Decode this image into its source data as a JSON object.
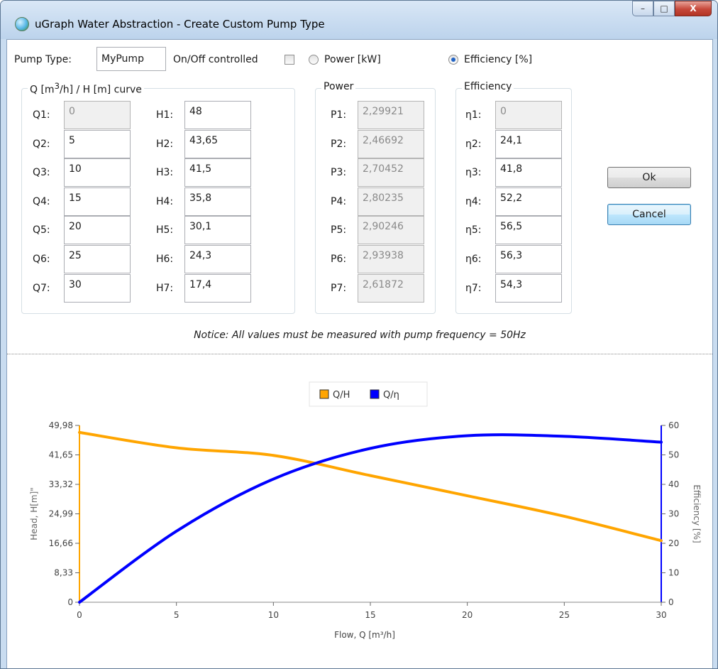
{
  "window": {
    "title": "uGraph Water Abstraction - Create Custom Pump Type",
    "buttons": {
      "minimize": "–",
      "maximize": "□",
      "close": "X"
    }
  },
  "form": {
    "pump_type_label": "Pump Type:",
    "pump_type_value": "MyPump",
    "onoff_label": "On/Off controlled",
    "onoff_checked": false,
    "power_radio_label": "Power [kW]",
    "efficiency_radio_label": "Efficiency [%]",
    "selected_mode": "efficiency"
  },
  "groups": {
    "qh": {
      "title": "Q [m³/h] / H [m] curve",
      "q_labels": [
        "Q1:",
        "Q2:",
        "Q3:",
        "Q4:",
        "Q5:",
        "Q6:",
        "Q7:"
      ],
      "q_values": [
        "0",
        "5",
        "10",
        "15",
        "20",
        "25",
        "30"
      ],
      "h_labels": [
        "H1:",
        "H2:",
        "H3:",
        "H4:",
        "H5:",
        "H6:",
        "H7:"
      ],
      "h_values": [
        "48",
        "43,65",
        "41,5",
        "35,8",
        "30,1",
        "24,3",
        "17,4"
      ]
    },
    "power": {
      "title": "Power",
      "labels": [
        "P1:",
        "P2:",
        "P3:",
        "P4:",
        "P5:",
        "P6:",
        "P7:"
      ],
      "values": [
        "2,29921",
        "2,46692",
        "2,70452",
        "2,80235",
        "2,90246",
        "2,93938",
        "2,61872"
      ]
    },
    "efficiency": {
      "title": "Efficiency",
      "labels": [
        "η1:",
        "η2:",
        "η3:",
        "η4:",
        "η5:",
        "η6:",
        "η7:"
      ],
      "values": [
        "0",
        "24,1",
        "41,8",
        "52,2",
        "56,5",
        "56,3",
        "54,3"
      ]
    }
  },
  "actions": {
    "ok_label": "Ok",
    "cancel_label": "Cancel"
  },
  "notice": "Notice: All values must be measured with pump frequency = 50Hz",
  "chart_data": {
    "type": "line",
    "legend": {
      "position": "top-center",
      "items": [
        "Q/H",
        "Q/η"
      ]
    },
    "xlabel": "Flow, Q [m³/h]",
    "ylabel": "Head, H[m]\"",
    "y2label": "Efficiency [%]",
    "xlim": [
      0,
      30
    ],
    "ylim": [
      0,
      49.98
    ],
    "y2lim": [
      0,
      60
    ],
    "x_ticks": [
      "0",
      "5",
      "10",
      "15",
      "20",
      "25",
      "30"
    ],
    "x_tick_values": [
      0,
      5,
      10,
      15,
      20,
      25,
      30
    ],
    "y_ticks": [
      "0",
      "8,33",
      "16,66",
      "24,99",
      "33,32",
      "41,65",
      "49,98"
    ],
    "y_tick_values": [
      0,
      8.33,
      16.66,
      24.99,
      33.32,
      41.65,
      49.98
    ],
    "y2_ticks": [
      "0",
      "10",
      "20",
      "30",
      "40",
      "50",
      "60"
    ],
    "y2_tick_values": [
      0,
      10,
      20,
      30,
      40,
      50,
      60
    ],
    "series": [
      {
        "name": "Q/H",
        "axis": "left",
        "color": "#ffa500",
        "x": [
          0,
          5,
          10,
          15,
          20,
          25,
          30
        ],
        "values": [
          48,
          43.65,
          41.5,
          35.8,
          30.1,
          24.3,
          17.4
        ]
      },
      {
        "name": "Q/η",
        "axis": "right",
        "color": "#0000ff",
        "x": [
          0,
          5,
          10,
          15,
          20,
          25,
          30
        ],
        "values": [
          0,
          24.1,
          41.8,
          52.2,
          56.5,
          56.3,
          54.3
        ]
      }
    ],
    "axis_colors": {
      "left": "#ffa500",
      "right": "#0000ff"
    }
  }
}
